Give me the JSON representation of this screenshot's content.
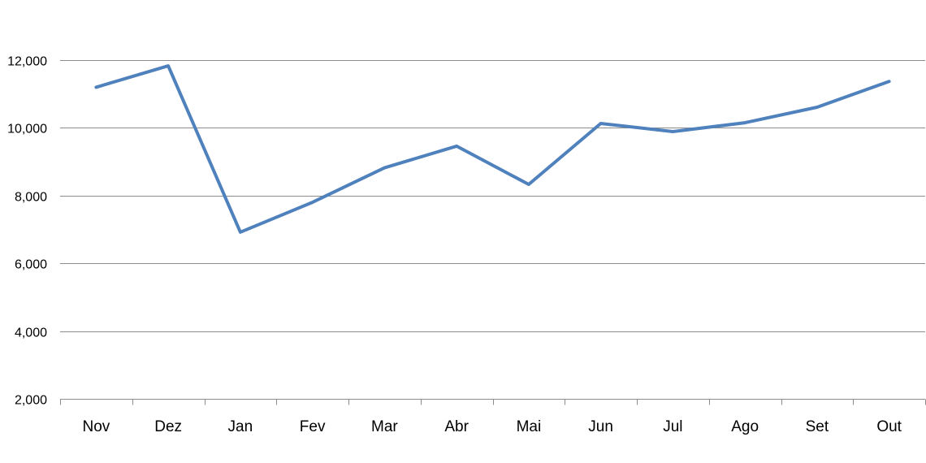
{
  "chart_data": {
    "type": "line",
    "categories": [
      "Nov",
      "Dez",
      "Jan",
      "Fev",
      "Mar",
      "Abr",
      "Mai",
      "Jun",
      "Jul",
      "Ago",
      "Set",
      "Out"
    ],
    "series": [
      {
        "values": [
          11200,
          11830,
          6920,
          7800,
          8820,
          9460,
          8330,
          10130,
          9890,
          10150,
          10610,
          11370
        ],
        "color": "#4f81bd"
      }
    ],
    "y_ticks": [
      "2,000",
      "4,000",
      "6,000",
      "8,000",
      "10,000",
      "12,000"
    ],
    "ylim": [
      2000,
      13000
    ],
    "y_tick_values": [
      2000,
      4000,
      6000,
      8000,
      10000,
      12000
    ],
    "gridlines": true,
    "legend": "none",
    "title": "",
    "xlabel": "",
    "ylabel": ""
  }
}
